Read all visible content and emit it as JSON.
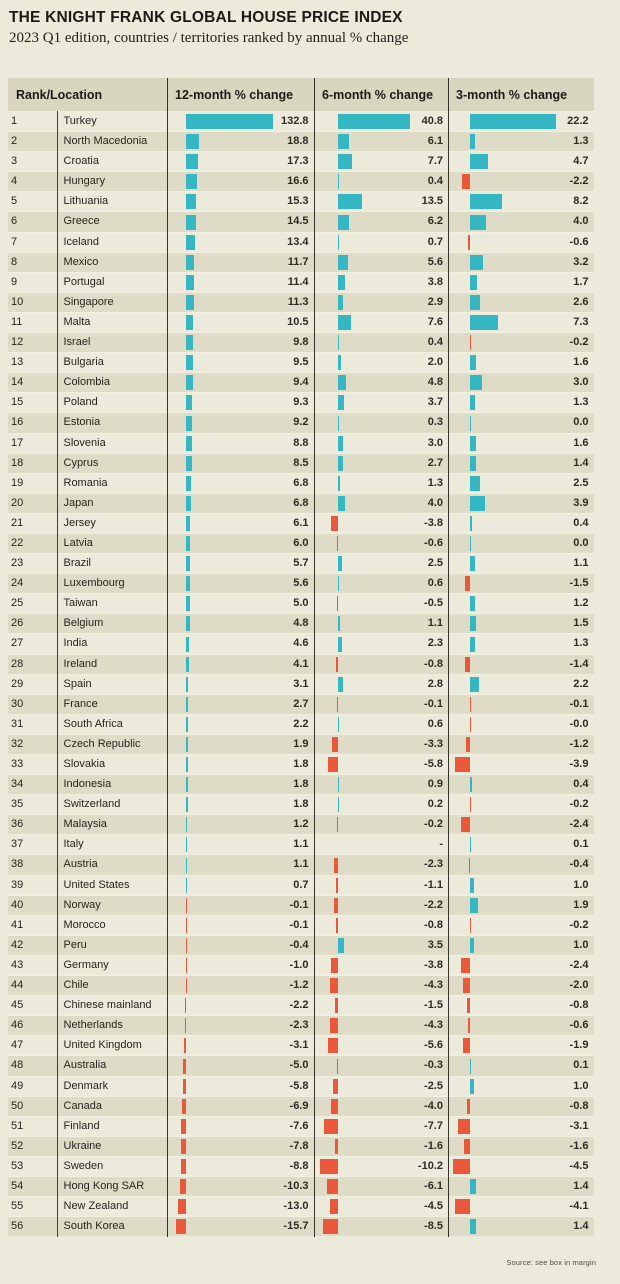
{
  "page": {
    "title": "THE KNIGHT FRANK GLOBAL HOUSE PRICE INDEX",
    "subtitle": "2023 Q1 edition, countries / territories ranked by annual % change",
    "source_note": "Source: see box in margin"
  },
  "table": {
    "headers": [
      "Rank/Location",
      "12-month % change",
      "6-month % change",
      "3-month % change"
    ]
  },
  "colors": {
    "positive_bar": "#35b7c3",
    "negative_bar": "#e9583a",
    "page_bg": "#ebeadb",
    "stripe_bg": "#dedcc6",
    "header_bg": "#d8d6bf"
  },
  "chart_data": {
    "type": "bar",
    "title": "THE KNIGHT FRANK GLOBAL HOUSE PRICE INDEX",
    "subtitle": "2023 Q1 edition, countries / territories ranked by annual % change",
    "columns": [
      "12-month % change",
      "6-month % change",
      "3-month % change"
    ],
    "legend": "teal bars = positive % change, red bars = negative % change",
    "rows": [
      {
        "rank": 1,
        "location": "Turkey",
        "m12": "132.8",
        "m6": "40.8",
        "m3": "22.2"
      },
      {
        "rank": 2,
        "location": "North Macedonia",
        "m12": "18.8",
        "m6": "6.1",
        "m3": "1.3"
      },
      {
        "rank": 3,
        "location": "Croatia",
        "m12": "17.3",
        "m6": "7.7",
        "m3": "4.7"
      },
      {
        "rank": 4,
        "location": "Hungary",
        "m12": "16.6",
        "m6": "0.4",
        "m3": "-2.2"
      },
      {
        "rank": 5,
        "location": "Lithuania",
        "m12": "15.3",
        "m6": "13.5",
        "m3": "8.2"
      },
      {
        "rank": 6,
        "location": "Greece",
        "m12": "14.5",
        "m6": "6.2",
        "m3": "4.0"
      },
      {
        "rank": 7,
        "location": "Iceland",
        "m12": "13.4",
        "m6": "0.7",
        "m3": "-0.6"
      },
      {
        "rank": 8,
        "location": "Mexico",
        "m12": "11.7",
        "m6": "5.6",
        "m3": "3.2"
      },
      {
        "rank": 9,
        "location": "Portugal",
        "m12": "11.4",
        "m6": "3.8",
        "m3": "1.7"
      },
      {
        "rank": 10,
        "location": "Singapore",
        "m12": "11.3",
        "m6": "2.9",
        "m3": "2.6"
      },
      {
        "rank": 11,
        "location": "Malta",
        "m12": "10.5",
        "m6": "7.6",
        "m3": "7.3"
      },
      {
        "rank": 12,
        "location": "Israel",
        "m12": "9.8",
        "m6": "0.4",
        "m3": "-0.2"
      },
      {
        "rank": 13,
        "location": "Bulgaria",
        "m12": "9.5",
        "m6": "2.0",
        "m3": "1.6"
      },
      {
        "rank": 14,
        "location": "Colombia",
        "m12": "9.4",
        "m6": "4.8",
        "m3": "3.0"
      },
      {
        "rank": 15,
        "location": "Poland",
        "m12": "9.3",
        "m6": "3.7",
        "m3": "1.3"
      },
      {
        "rank": 16,
        "location": "Estonia",
        "m12": "9.2",
        "m6": "0.3",
        "m3": "0.0"
      },
      {
        "rank": 17,
        "location": "Slovenia",
        "m12": "8.8",
        "m6": "3.0",
        "m3": "1.6"
      },
      {
        "rank": 18,
        "location": "Cyprus",
        "m12": "8.5",
        "m6": "2.7",
        "m3": "1.4"
      },
      {
        "rank": 19,
        "location": "Romania",
        "m12": "6.8",
        "m6": "1.3",
        "m3": "2.5"
      },
      {
        "rank": 20,
        "location": "Japan",
        "m12": "6.8",
        "m6": "4.0",
        "m3": "3.9"
      },
      {
        "rank": 21,
        "location": "Jersey",
        "m12": "6.1",
        "m6": "-3.8",
        "m3": "0.4"
      },
      {
        "rank": 22,
        "location": "Latvia",
        "m12": "6.0",
        "m6": "-0.6",
        "m3": "0.0"
      },
      {
        "rank": 23,
        "location": "Brazil",
        "m12": "5.7",
        "m6": "2.5",
        "m3": "1.1"
      },
      {
        "rank": 24,
        "location": "Luxembourg",
        "m12": "5.6",
        "m6": "0.6",
        "m3": "-1.5"
      },
      {
        "rank": 25,
        "location": "Taiwan",
        "m12": "5.0",
        "m6": "-0.5",
        "m3": "1.2"
      },
      {
        "rank": 26,
        "location": "Belgium",
        "m12": "4.8",
        "m6": "1.1",
        "m3": "1.5"
      },
      {
        "rank": 27,
        "location": "India",
        "m12": "4.6",
        "m6": "2.3",
        "m3": "1.3"
      },
      {
        "rank": 28,
        "location": "Ireland",
        "m12": "4.1",
        "m6": "-0.8",
        "m3": "-1.4"
      },
      {
        "rank": 29,
        "location": "Spain",
        "m12": "3.1",
        "m6": "2.8",
        "m3": "2.2"
      },
      {
        "rank": 30,
        "location": "France",
        "m12": "2.7",
        "m6": "-0.1",
        "m3": "-0.1"
      },
      {
        "rank": 31,
        "location": "South Africa",
        "m12": "2.2",
        "m6": "0.6",
        "m3": "-0.0"
      },
      {
        "rank": 32,
        "location": "Czech Republic",
        "m12": "1.9",
        "m6": "-3.3",
        "m3": "-1.2"
      },
      {
        "rank": 33,
        "location": "Slovakia",
        "m12": "1.8",
        "m6": "-5.8",
        "m3": "-3.9"
      },
      {
        "rank": 34,
        "location": "Indonesia",
        "m12": "1.8",
        "m6": "0.9",
        "m3": "0.4"
      },
      {
        "rank": 35,
        "location": "Switzerland",
        "m12": "1.8",
        "m6": "0.2",
        "m3": "-0.2"
      },
      {
        "rank": 36,
        "location": "Malaysia",
        "m12": "1.2",
        "m6": "-0.2",
        "m3": "-2.4"
      },
      {
        "rank": 37,
        "location": "Italy",
        "m12": "1.1",
        "m6": "-",
        "m3": "0.1"
      },
      {
        "rank": 38,
        "location": "Austria",
        "m12": "1.1",
        "m6": "-2.3",
        "m3": "-0.4"
      },
      {
        "rank": 39,
        "location": "United States",
        "m12": "0.7",
        "m6": "-1.1",
        "m3": "1.0"
      },
      {
        "rank": 40,
        "location": "Norway",
        "m12": "-0.1",
        "m6": "-2.2",
        "m3": "1.9"
      },
      {
        "rank": 41,
        "location": "Morocco",
        "m12": "-0.1",
        "m6": "-0.8",
        "m3": "-0.2"
      },
      {
        "rank": 42,
        "location": "Peru",
        "m12": "-0.4",
        "m6": "3.5",
        "m3": "1.0"
      },
      {
        "rank": 43,
        "location": "Germany",
        "m12": "-1.0",
        "m6": "-3.8",
        "m3": "-2.4"
      },
      {
        "rank": 44,
        "location": "Chile",
        "m12": "-1.2",
        "m6": "-4.3",
        "m3": "-2.0"
      },
      {
        "rank": 45,
        "location": "Chinese mainland",
        "m12": "-2.2",
        "m6": "-1.5",
        "m3": "-0.8"
      },
      {
        "rank": 46,
        "location": "Netherlands",
        "m12": "-2.3",
        "m6": "-4.3",
        "m3": "-0.6"
      },
      {
        "rank": 47,
        "location": "United Kingdom",
        "m12": "-3.1",
        "m6": "-5.6",
        "m3": "-1.9"
      },
      {
        "rank": 48,
        "location": "Australia",
        "m12": "-5.0",
        "m6": "-0.3",
        "m3": "0.1"
      },
      {
        "rank": 49,
        "location": "Denmark",
        "m12": "-5.8",
        "m6": "-2.5",
        "m3": "1.0"
      },
      {
        "rank": 50,
        "location": "Canada",
        "m12": "-6.9",
        "m6": "-4.0",
        "m3": "-0.8"
      },
      {
        "rank": 51,
        "location": "Finland",
        "m12": "-7.6",
        "m6": "-7.7",
        "m3": "-3.1"
      },
      {
        "rank": 52,
        "location": "Ukraine",
        "m12": "-7.8",
        "m6": "-1.6",
        "m3": "-1.6"
      },
      {
        "rank": 53,
        "location": "Sweden",
        "m12": "-8.8",
        "m6": "-10.2",
        "m3": "-4.5"
      },
      {
        "rank": 54,
        "location": "Hong Kong SAR",
        "m12": "-10.3",
        "m6": "-6.1",
        "m3": "1.4"
      },
      {
        "rank": 55,
        "location": "New Zealand",
        "m12": "-13.0",
        "m6": "-4.5",
        "m3": "-4.1"
      },
      {
        "rank": 56,
        "location": "South Korea",
        "m12": "-15.7",
        "m6": "-8.5",
        "m3": "1.4"
      }
    ]
  }
}
